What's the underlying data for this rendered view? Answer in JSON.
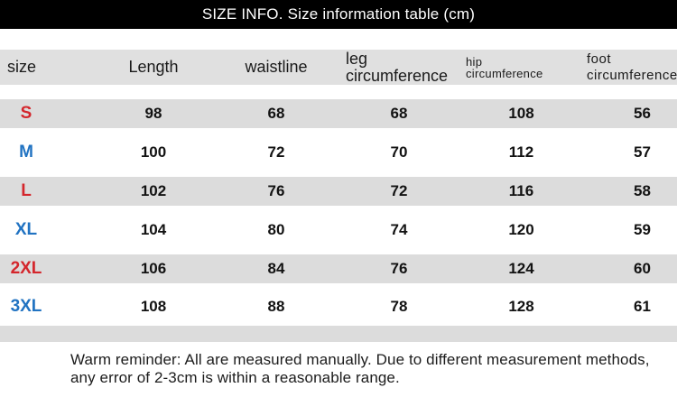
{
  "title": "SIZE INFO. Size information table (cm)",
  "colors": {
    "title_bar_bg": "#000000",
    "title_text": "#ffffff",
    "header_bg": "#e0e0e0",
    "row_gray_bg": "#dcdcdc",
    "size_red": "#d4262c",
    "size_blue": "#2173c2",
    "value_text": "#121212"
  },
  "size_table": {
    "columns": [
      "size",
      "Length",
      "waistline",
      "leg circumference",
      "hip circumference",
      "foot circumference"
    ],
    "rows": [
      {
        "size": "S",
        "length": "98",
        "waistline": "68",
        "leg": "68",
        "hip": "108",
        "foot": "56"
      },
      {
        "size": "M",
        "length": "100",
        "waistline": "72",
        "leg": "70",
        "hip": "112",
        "foot": "57"
      },
      {
        "size": "L",
        "length": "102",
        "waistline": "76",
        "leg": "72",
        "hip": "116",
        "foot": "58"
      },
      {
        "size": "XL",
        "length": "104",
        "waistline": "80",
        "leg": "74",
        "hip": "120",
        "foot": "59"
      },
      {
        "size": "2XL",
        "length": "106",
        "waistline": "84",
        "leg": "76",
        "hip": "124",
        "foot": "60"
      },
      {
        "size": "3XL",
        "length": "108",
        "waistline": "88",
        "leg": "78",
        "hip": "128",
        "foot": "61"
      }
    ]
  },
  "footer": {
    "line1": "Warm reminder: All are measured manually. Due to different measurement methods,",
    "line2": "any error of 2-3cm is within a reasonable range."
  },
  "chart_data": {
    "type": "table",
    "title": "SIZE INFO. Size information table (cm)",
    "unit": "cm",
    "columns": [
      "size",
      "Length",
      "waistline",
      "leg circumference",
      "hip circumference",
      "foot circumference"
    ],
    "rows": [
      [
        "S",
        98,
        68,
        68,
        108,
        56
      ],
      [
        "M",
        100,
        72,
        70,
        112,
        57
      ],
      [
        "L",
        102,
        76,
        72,
        116,
        58
      ],
      [
        "XL",
        104,
        80,
        74,
        120,
        59
      ],
      [
        "2XL",
        106,
        84,
        76,
        124,
        60
      ],
      [
        "3XL",
        108,
        88,
        78,
        128,
        61
      ]
    ],
    "note": "Warm reminder: All are measured manually. Due to different measurement methods, any error of 2-3cm is within a reasonable range."
  }
}
